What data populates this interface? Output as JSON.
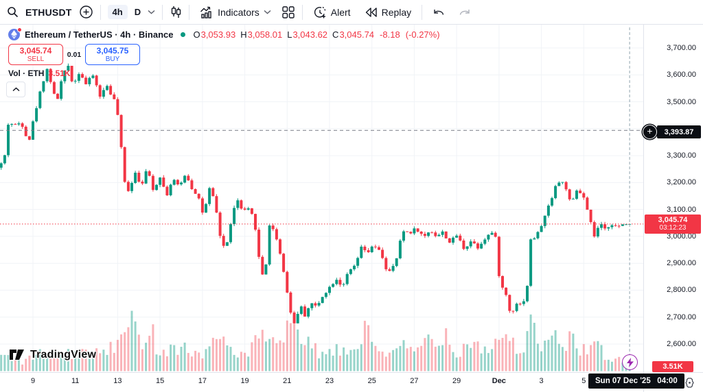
{
  "toolbar": {
    "symbol": "ETHUSDT",
    "interval": "4h",
    "interval_daily": "D",
    "indicators_label": "Indicators",
    "alert_label": "Alert",
    "replay_label": "Replay"
  },
  "symbol_row": {
    "title": "Ethereum / TetherUS · 4h · Binance",
    "ohlc": {
      "o_key": "O",
      "o": "3,053.93",
      "h_key": "H",
      "h": "3,058.01",
      "l_key": "L",
      "l": "3,043.62",
      "c_key": "C",
      "c": "3,045.74",
      "change": "-8.18",
      "change_pct": "(-0.27%)"
    }
  },
  "trade_panel": {
    "sell_price": "3,045.74",
    "sell_label": "SELL",
    "spread": "0.01",
    "buy_price": "3,045.75",
    "buy_label": "BUY"
  },
  "volume_row": {
    "label": "Vol · ETH",
    "value": "3.51K"
  },
  "watermark": {
    "text": "TradingView"
  },
  "price_axis": {
    "labels": [
      {
        "t": "3,700.00",
        "v": 3700
      },
      {
        "t": "3,600.00",
        "v": 3600
      },
      {
        "t": "3,500.00",
        "v": 3500
      },
      {
        "t": "3,300.00",
        "v": 3300
      },
      {
        "t": "3,200.00",
        "v": 3200
      },
      {
        "t": "3,100.00",
        "v": 3100
      },
      {
        "t": "3,000.00",
        "v": 3000
      },
      {
        "t": "2,900.00",
        "v": 2900
      },
      {
        "t": "2,800.00",
        "v": 2800
      },
      {
        "t": "2,700.00",
        "v": 2700
      },
      {
        "t": "2,600.00",
        "v": 2600
      }
    ],
    "alert_badge": "3,393.87",
    "last_badge": {
      "price": "3,045.74",
      "countdown": "03:12:23"
    },
    "volume_badge": "3.51K"
  },
  "time_axis": {
    "ticks": [
      {
        "t": "9",
        "d": 9
      },
      {
        "t": "11",
        "d": 11
      },
      {
        "t": "13",
        "d": 13
      },
      {
        "t": "15",
        "d": 15
      },
      {
        "t": "17",
        "d": 17
      },
      {
        "t": "19",
        "d": 19
      },
      {
        "t": "21",
        "d": 21
      },
      {
        "t": "23",
        "d": 23
      },
      {
        "t": "25",
        "d": 25
      },
      {
        "t": "27",
        "d": 27
      },
      {
        "t": "29",
        "d": 29
      },
      {
        "t": "Dec",
        "d": 31,
        "bold": true
      },
      {
        "t": "3",
        "d": 33
      },
      {
        "t": "5",
        "d": 35
      }
    ],
    "badge": "Sun 07 Dec '25   04:00"
  },
  "chart_data": {
    "type": "candlestick",
    "symbol": "ETHUSDT",
    "title": "Ethereum / TetherUS",
    "interval": "4h",
    "exchange": "Binance",
    "last_bar": {
      "open": 3053.93,
      "high": 3058.01,
      "low": 3043.62,
      "close": 3045.74,
      "change": -8.18,
      "change_pct": -0.27
    },
    "last_price": 3045.74,
    "last_volume": "3.51K",
    "alert_level": 3393.87,
    "session_marker_day": 37.167,
    "y_gridlines": [
      3700,
      3600,
      3500,
      3400,
      3300,
      3200,
      3100,
      3000,
      2900,
      2800,
      2700,
      2600
    ],
    "bars_per_day": 6,
    "day_span": [
      7.5,
      37.167
    ],
    "price_path_anchors": [
      [
        7.5,
        3270
      ],
      [
        7.67,
        3300
      ],
      [
        7.85,
        3430
      ],
      [
        8.1,
        3410
      ],
      [
        8.45,
        3425
      ],
      [
        8.8,
        3350
      ],
      [
        9.1,
        3460
      ],
      [
        9.4,
        3555
      ],
      [
        9.65,
        3625
      ],
      [
        9.9,
        3560
      ],
      [
        10.1,
        3490
      ],
      [
        10.35,
        3580
      ],
      [
        10.65,
        3640
      ],
      [
        10.9,
        3560
      ],
      [
        11.2,
        3615
      ],
      [
        11.5,
        3565
      ],
      [
        11.85,
        3600
      ],
      [
        12.15,
        3520
      ],
      [
        12.5,
        3560
      ],
      [
        12.9,
        3495
      ],
      [
        13.05,
        3430
      ],
      [
        13.3,
        3205
      ],
      [
        13.55,
        3165
      ],
      [
        13.8,
        3245
      ],
      [
        14.1,
        3190
      ],
      [
        14.4,
        3250
      ],
      [
        14.7,
        3170
      ],
      [
        15.0,
        3225
      ],
      [
        15.3,
        3150
      ],
      [
        15.6,
        3215
      ],
      [
        15.9,
        3180
      ],
      [
        16.2,
        3235
      ],
      [
        16.5,
        3180
      ],
      [
        16.8,
        3150
      ],
      [
        17.05,
        3075
      ],
      [
        17.35,
        3180
      ],
      [
        17.6,
        3120
      ],
      [
        17.85,
        2995
      ],
      [
        18.1,
        2945
      ],
      [
        18.4,
        3080
      ],
      [
        18.65,
        3135
      ],
      [
        18.9,
        3090
      ],
      [
        19.15,
        3100
      ],
      [
        19.45,
        3065
      ],
      [
        19.75,
        2865
      ],
      [
        19.95,
        2850
      ],
      [
        20.15,
        3045
      ],
      [
        20.45,
        3010
      ],
      [
        20.7,
        2925
      ],
      [
        20.95,
        2820
      ],
      [
        21.2,
        2700
      ],
      [
        21.35,
        2675
      ],
      [
        21.6,
        2745
      ],
      [
        21.85,
        2705
      ],
      [
        22.1,
        2755
      ],
      [
        22.4,
        2735
      ],
      [
        22.7,
        2785
      ],
      [
        23.0,
        2810
      ],
      [
        23.3,
        2845
      ],
      [
        23.6,
        2815
      ],
      [
        23.9,
        2865
      ],
      [
        24.2,
        2890
      ],
      [
        24.5,
        2955
      ],
      [
        24.8,
        2940
      ],
      [
        25.1,
        2965
      ],
      [
        25.45,
        2935
      ],
      [
        25.75,
        2860
      ],
      [
        26.1,
        2895
      ],
      [
        26.45,
        3020
      ],
      [
        26.8,
        3015
      ],
      [
        27.1,
        3030
      ],
      [
        27.45,
        2995
      ],
      [
        27.75,
        3025
      ],
      [
        28.05,
        3000
      ],
      [
        28.35,
        3015
      ],
      [
        28.7,
        2975
      ],
      [
        29.0,
        3005
      ],
      [
        29.35,
        2955
      ],
      [
        29.7,
        2985
      ],
      [
        30.0,
        2960
      ],
      [
        30.35,
        2995
      ],
      [
        30.65,
        3015
      ],
      [
        30.85,
        2990
      ],
      [
        31.05,
        2815
      ],
      [
        31.3,
        2795
      ],
      [
        31.55,
        2705
      ],
      [
        31.8,
        2755
      ],
      [
        32.05,
        2745
      ],
      [
        32.3,
        2785
      ],
      [
        32.5,
        2985
      ],
      [
        32.8,
        3005
      ],
      [
        33.1,
        3060
      ],
      [
        33.4,
        3125
      ],
      [
        33.7,
        3195
      ],
      [
        33.95,
        3205
      ],
      [
        34.2,
        3175
      ],
      [
        34.4,
        3110
      ],
      [
        34.65,
        3170
      ],
      [
        34.95,
        3155
      ],
      [
        35.2,
        3085
      ],
      [
        35.5,
        3000
      ],
      [
        35.75,
        3045
      ],
      [
        36.0,
        3025
      ],
      [
        36.3,
        3050
      ],
      [
        36.6,
        3030
      ],
      [
        36.85,
        3045
      ],
      [
        37.167,
        3045.74
      ]
    ],
    "volume_anchors": [
      [
        7.5,
        26
      ],
      [
        7.8,
        18
      ],
      [
        8.2,
        13
      ],
      [
        8.6,
        15
      ],
      [
        9.0,
        20
      ],
      [
        9.4,
        26
      ],
      [
        9.7,
        22
      ],
      [
        10.0,
        18
      ],
      [
        10.4,
        28
      ],
      [
        10.8,
        22
      ],
      [
        11.2,
        32
      ],
      [
        11.6,
        24
      ],
      [
        12.0,
        27
      ],
      [
        12.4,
        30
      ],
      [
        12.8,
        33
      ],
      [
        13.2,
        48
      ],
      [
        13.5,
        62
      ],
      [
        13.7,
        86
      ],
      [
        13.9,
        42
      ],
      [
        14.2,
        50
      ],
      [
        14.5,
        72
      ],
      [
        14.8,
        38
      ],
      [
        15.2,
        30
      ],
      [
        15.6,
        34
      ],
      [
        16.0,
        38
      ],
      [
        16.4,
        28
      ],
      [
        16.8,
        24
      ],
      [
        17.2,
        30
      ],
      [
        17.6,
        42
      ],
      [
        17.9,
        52
      ],
      [
        18.3,
        34
      ],
      [
        18.7,
        26
      ],
      [
        19.1,
        22
      ],
      [
        19.5,
        40
      ],
      [
        19.8,
        58
      ],
      [
        20.1,
        44
      ],
      [
        20.5,
        32
      ],
      [
        20.9,
        50
      ],
      [
        21.2,
        72
      ],
      [
        21.4,
        88
      ],
      [
        21.7,
        48
      ],
      [
        22.1,
        34
      ],
      [
        22.5,
        28
      ],
      [
        22.9,
        22
      ],
      [
        23.3,
        30
      ],
      [
        23.7,
        26
      ],
      [
        24.1,
        32
      ],
      [
        24.5,
        46
      ],
      [
        24.8,
        64
      ],
      [
        25.2,
        34
      ],
      [
        25.6,
        28
      ],
      [
        26.0,
        24
      ],
      [
        26.4,
        38
      ],
      [
        26.8,
        28
      ],
      [
        27.2,
        32
      ],
      [
        27.6,
        50
      ],
      [
        28.0,
        38
      ],
      [
        28.4,
        62
      ],
      [
        28.8,
        32
      ],
      [
        29.2,
        28
      ],
      [
        29.6,
        52
      ],
      [
        30.0,
        38
      ],
      [
        30.4,
        30
      ],
      [
        30.8,
        42
      ],
      [
        31.1,
        56
      ],
      [
        31.4,
        48
      ],
      [
        31.8,
        36
      ],
      [
        32.2,
        30
      ],
      [
        32.5,
        66
      ],
      [
        32.9,
        36
      ],
      [
        33.3,
        42
      ],
      [
        33.7,
        46
      ],
      [
        34.1,
        36
      ],
      [
        34.5,
        52
      ],
      [
        34.9,
        30
      ],
      [
        35.3,
        36
      ],
      [
        35.6,
        46
      ],
      [
        36.0,
        16
      ],
      [
        36.4,
        13
      ],
      [
        36.8,
        18
      ],
      [
        37.167,
        12
      ]
    ],
    "colors": {
      "up": "#089981",
      "down": "#f23645",
      "volume_up": "#089981",
      "volume_down": "#f23645",
      "grid": "#f0f3f7",
      "alert_line": "#787b86",
      "last_price_line": "#f23645",
      "session_line": "#90a4ae",
      "buy": "#2962ff",
      "badge_dark": "#0b0e14",
      "eth_logo": "#627eea"
    }
  }
}
